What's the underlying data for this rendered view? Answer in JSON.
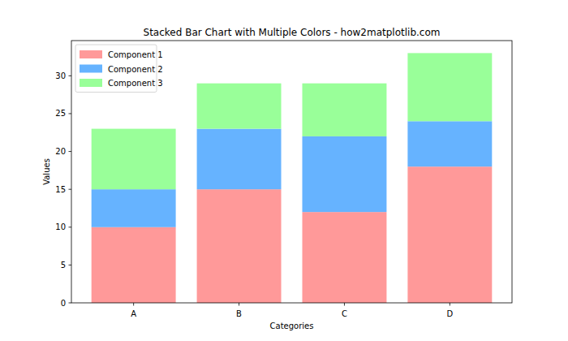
{
  "chart_data": {
    "type": "bar",
    "title": "Stacked Bar Chart with Multiple Colors - how2matplotlib.com",
    "x_label": "Categories",
    "y_label": "Values",
    "categories": [
      "A",
      "B",
      "C",
      "D"
    ],
    "series": [
      {
        "name": "Component 1",
        "color": "#ff9999",
        "values": [
          10,
          15,
          12,
          18
        ]
      },
      {
        "name": "Component 2",
        "color": "#66b3ff",
        "values": [
          5,
          8,
          10,
          6
        ]
      },
      {
        "name": "Component 3",
        "color": "#99ff99",
        "values": [
          8,
          6,
          7,
          9
        ]
      }
    ],
    "stacked": true,
    "legend": "upper left",
    "grid": false,
    "ylim": [
      0,
      34.65
    ],
    "yticks": [
      0,
      5,
      10,
      15,
      20,
      25,
      30
    ]
  }
}
